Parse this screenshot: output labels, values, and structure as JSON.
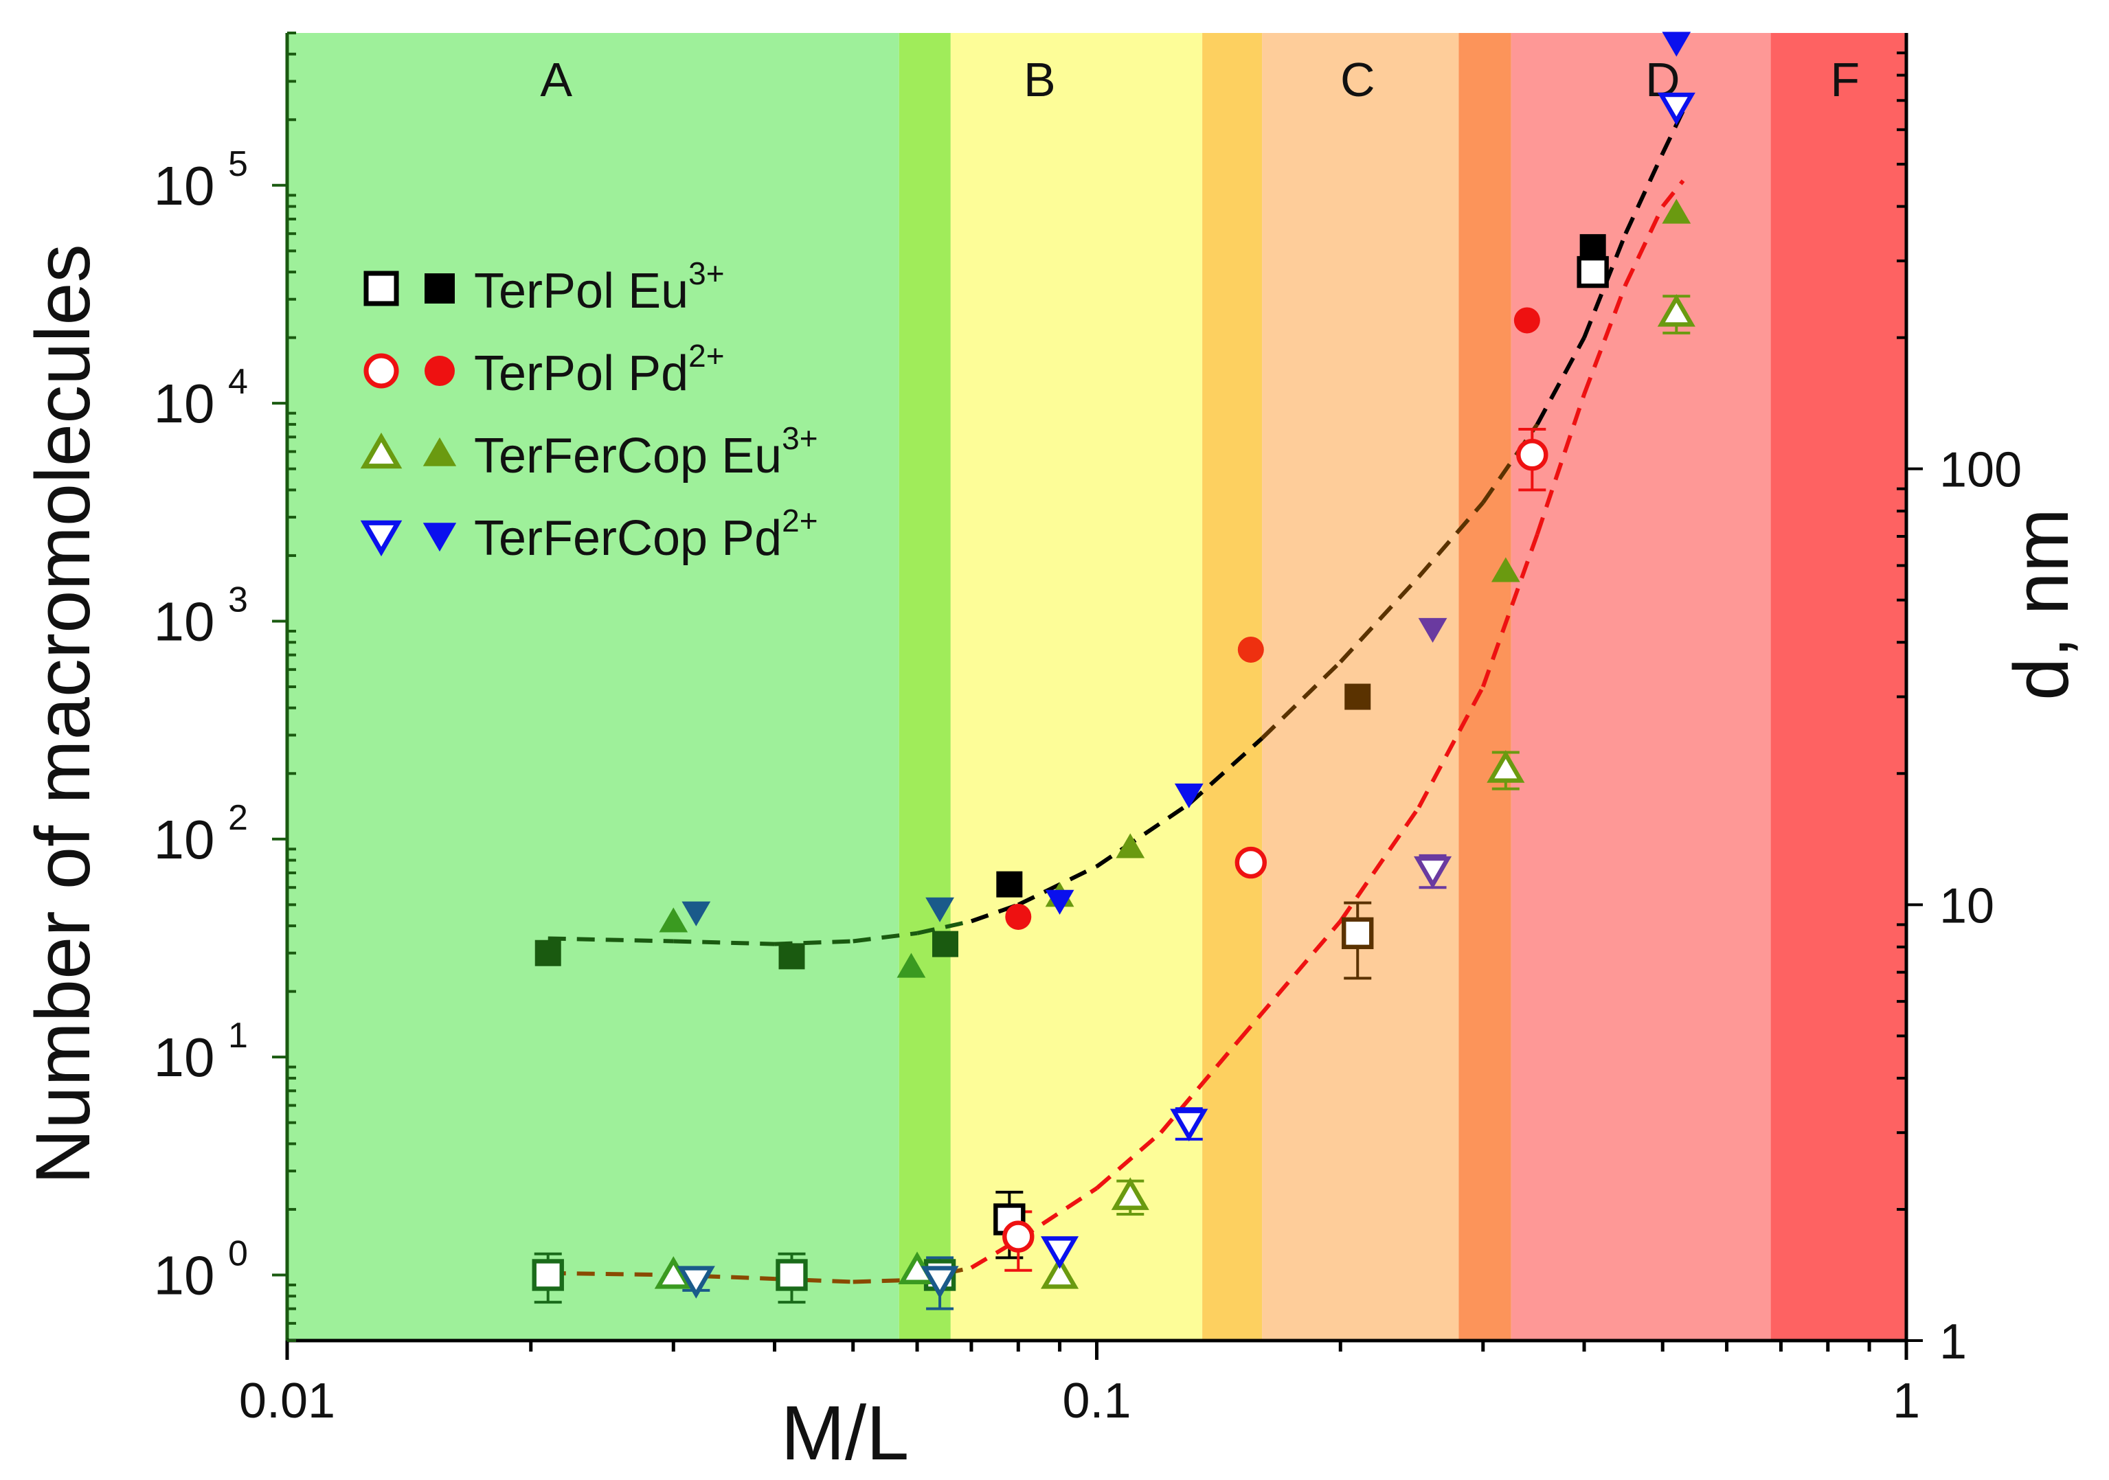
{
  "chart_data": {
    "type": "scatter",
    "title": "",
    "xlabel": "M/L",
    "ylabel": "Number of macromolecules",
    "y2label": "d, nm",
    "xscale": "log",
    "yscale": "log",
    "xlim": [
      0.01,
      1
    ],
    "ylim": [
      0.5,
      500000
    ],
    "y2lim": [
      1,
      1000
    ],
    "x_ticks": [
      0.01,
      0.1,
      1
    ],
    "x_ticklabels": [
      "0.01",
      "0.1",
      "1"
    ],
    "y_ticks": [
      1,
      10,
      100,
      1000,
      10000,
      100000
    ],
    "y_tick_mantissa": "10",
    "y_tick_exponents": [
      "0",
      "1",
      "2",
      "3",
      "4",
      "5"
    ],
    "y2_ticks": [
      1,
      10,
      100
    ],
    "y2_ticklabels": [
      "1",
      "10",
      "100"
    ],
    "regions": [
      {
        "label": "A",
        "x0": 0.01,
        "x1": 0.057,
        "color": "#9ef09a"
      },
      {
        "label": "",
        "x0": 0.057,
        "x1": 0.066,
        "color": "#a0ec5a"
      },
      {
        "label": "B",
        "x0": 0.066,
        "x1": 0.135,
        "color": "#fdfd98"
      },
      {
        "label": "",
        "x0": 0.135,
        "x1": 0.16,
        "color": "#fdd060"
      },
      {
        "label": "C",
        "x0": 0.16,
        "x1": 0.28,
        "color": "#fecd9a"
      },
      {
        "label": "",
        "x0": 0.28,
        "x1": 0.325,
        "color": "#fc945a"
      },
      {
        "label": "D",
        "x0": 0.325,
        "x1": 0.68,
        "color": "#fe9896"
      },
      {
        "label": "F",
        "x0": 0.68,
        "x1": 1.0,
        "color": "#fe6262"
      }
    ],
    "region_label_x": [
      0.0215,
      0.085,
      0.21,
      0.5,
      0.84
    ],
    "legend": {
      "placement": "upper-left",
      "entries": [
        {
          "name": "TerPol",
          "ion": "Eu",
          "charge": "3+",
          "marker": "square",
          "color": "#000000"
        },
        {
          "name": "TerPol",
          "ion": "Pd",
          "charge": "2+",
          "marker": "circle",
          "color": "#ee1111"
        },
        {
          "name": "TerFerCop",
          "ion": "Eu",
          "charge": "3+",
          "marker": "triangle-up",
          "color": "#6a9a10"
        },
        {
          "name": "TerFerCop",
          "ion": "Pd",
          "charge": "2+",
          "marker": "triangle-down",
          "color": "#0a10ee"
        }
      ]
    },
    "series": [
      {
        "name": "TerPol Eu3+ (open, number)",
        "marker": "square",
        "filled": false,
        "x": [
          0.021,
          0.042,
          0.064,
          0.078,
          0.21,
          0.41
        ],
        "y": [
          1.0,
          1.0,
          1.0,
          1.8,
          37,
          40000
        ],
        "yerr": [
          0.25,
          0.25,
          0.0,
          0.6,
          14,
          0
        ],
        "colors": [
          "#1a6b1a",
          "#1a6b1a",
          "#1a6b1a",
          "#000000",
          "#5a3200",
          "#000000"
        ]
      },
      {
        "name": "TerPol Eu3+ (filled, d)",
        "marker": "square",
        "filled": true,
        "x": [
          0.021,
          0.042,
          0.065,
          0.078,
          0.21,
          0.41
        ],
        "y": [
          30,
          29,
          33,
          62,
          450,
          52000
        ],
        "colors": [
          "#1a5a10",
          "#1a5a10",
          "#1a5a10",
          "#000000",
          "#5a3200",
          "#000000"
        ]
      },
      {
        "name": "TerPol Pd2+ (open, number)",
        "marker": "circle",
        "filled": false,
        "x": [
          0.08,
          0.155,
          0.345
        ],
        "y": [
          1.5,
          78,
          5800
        ],
        "yerr": [
          0.45,
          0,
          1800
        ],
        "colors": [
          "#ee1111",
          "#ee1111",
          "#ee1111"
        ]
      },
      {
        "name": "TerPol Pd2+ (filled, d)",
        "marker": "circle",
        "filled": true,
        "x": [
          0.08,
          0.155,
          0.34
        ],
        "y": [
          44,
          740,
          24000
        ],
        "colors": [
          "#ee1111",
          "#ee3010",
          "#ee1111"
        ]
      },
      {
        "name": "TerFerCop Eu3+ (open, number)",
        "marker": "triangle-up",
        "filled": false,
        "x": [
          0.03,
          0.06,
          0.09,
          0.11,
          0.32,
          0.52
        ],
        "y": [
          1.0,
          1.05,
          1.0,
          2.3,
          210,
          26000
        ],
        "yerr": [
          0,
          0,
          0,
          0.4,
          40,
          5000
        ],
        "colors": [
          "#3a9a20",
          "#3a9a20",
          "#6a9a10",
          "#6a9a10",
          "#6a9a10",
          "#6a9a10"
        ]
      },
      {
        "name": "TerFerCop Eu3+ (filled, d)",
        "marker": "triangle-up",
        "filled": true,
        "x": [
          0.03,
          0.059,
          0.09,
          0.11,
          0.32,
          0.52
        ],
        "y": [
          42,
          26,
          55,
          92,
          1700,
          75000
        ],
        "colors": [
          "#3a9a20",
          "#3a9a20",
          "#6a9a10",
          "#6a9a10",
          "#6a9a10",
          "#6a9a10"
        ]
      },
      {
        "name": "TerFerCop Pd2+ (open, number)",
        "marker": "triangle-down",
        "filled": false,
        "x": [
          0.032,
          0.064,
          0.09,
          0.13,
          0.26,
          0.52
        ],
        "y": [
          0.95,
          0.95,
          1.3,
          5.0,
          72,
          230000
        ],
        "yerr": [
          0.1,
          0.25,
          0,
          0.8,
          12,
          0
        ],
        "colors": [
          "#1a5a8a",
          "#1a5a8a",
          "#0a10ee",
          "#0a10ee",
          "#6a3aa0",
          "#0a10ee"
        ]
      },
      {
        "name": "TerFerCop Pd2+ (filled, d)",
        "marker": "triangle-down",
        "filled": true,
        "x": [
          0.032,
          0.064,
          0.09,
          0.13,
          0.26,
          0.52
        ],
        "y": [
          46,
          48,
          52,
          160,
          920,
          450000
        ],
        "colors": [
          "#1a5a8a",
          "#1a5a8a",
          "#0a10ee",
          "#0a10ee",
          "#6a3aa0",
          "#0a10ee"
        ]
      }
    ],
    "fit_lines": [
      {
        "name": "fit d (black dashed)",
        "style": "dashed",
        "x": [
          0.021,
          0.03,
          0.04,
          0.05,
          0.06,
          0.07,
          0.08,
          0.1,
          0.13,
          0.16,
          0.2,
          0.25,
          0.3,
          0.35,
          0.4,
          0.45,
          0.5,
          0.53
        ],
        "y": [
          35,
          34,
          33,
          34,
          37,
          42,
          50,
          75,
          145,
          290,
          650,
          1600,
          3500,
          8000,
          20000,
          60000,
          140000,
          220000
        ],
        "colors": [
          "#1a5a10",
          "#1a5a10",
          "#1a5a10",
          "#1a5a10",
          "#1a5a10",
          "#000000",
          "#000000",
          "#000000",
          "#000000",
          "#5a3200",
          "#5a3200",
          "#5a3200",
          "#5a3200",
          "#000000",
          "#000000",
          "#000000",
          "#000000"
        ]
      },
      {
        "name": "fit number (red dashed)",
        "style": "dashed",
        "x": [
          0.021,
          0.03,
          0.04,
          0.05,
          0.06,
          0.07,
          0.08,
          0.1,
          0.12,
          0.15,
          0.2,
          0.25,
          0.3,
          0.35,
          0.4,
          0.45,
          0.5,
          0.53
        ],
        "y": [
          1.02,
          1.0,
          0.96,
          0.93,
          0.95,
          1.08,
          1.45,
          2.5,
          4.5,
          12,
          42,
          140,
          500,
          2500,
          11000,
          35000,
          80000,
          105000
        ],
        "colors": [
          "#8a4a00",
          "#8a4a00",
          "#8a4a00",
          "#8a4a00",
          "#8a4a00",
          "#ee1111",
          "#ee1111",
          "#ee1111",
          "#ee1111",
          "#ee1111",
          "#ee1111",
          "#ee1111",
          "#ee1111",
          "#ee1111",
          "#ee1111",
          "#ee1111",
          "#ee1111"
        ]
      }
    ]
  }
}
